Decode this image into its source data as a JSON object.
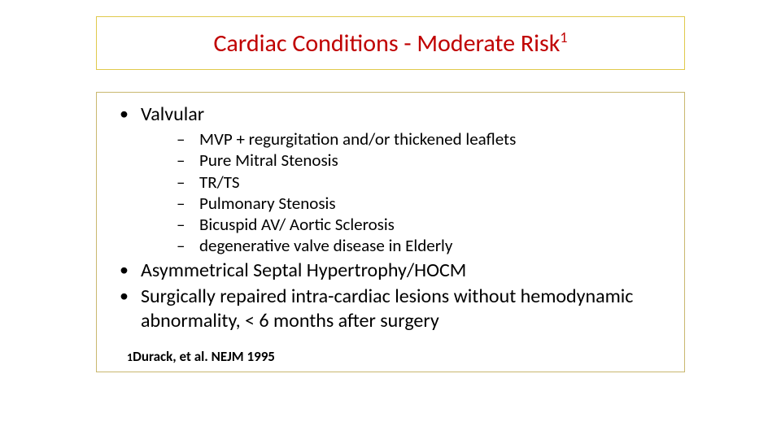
{
  "title": {
    "main": "Cardiac Conditions - Moderate Risk",
    "superscript": "1",
    "color": "#c00000",
    "fontsize": 30,
    "border_color": "#e0c94c"
  },
  "body": {
    "border_color": "#c9b870",
    "fontsize_level1": 24,
    "fontsize_level2": 21,
    "items": [
      {
        "text": "Valvular",
        "sub": [
          "MVP + regurgitation and/or thickened leaflets",
          "Pure Mitral Stenosis",
          "TR/TS",
          "Pulmonary Stenosis",
          "Bicuspid AV/ Aortic Sclerosis",
          "degenerative valve disease in Elderly"
        ]
      },
      {
        "text": "Asymmetrical Septal Hypertrophy/HOCM"
      },
      {
        "text": "Surgically repaired intra-cardiac lesions without hemodynamic abnormality, < 6 months after surgery"
      }
    ]
  },
  "reference": {
    "num": "1",
    "text": "Durack, et al. NEJM 1995",
    "fontsize": 17
  }
}
